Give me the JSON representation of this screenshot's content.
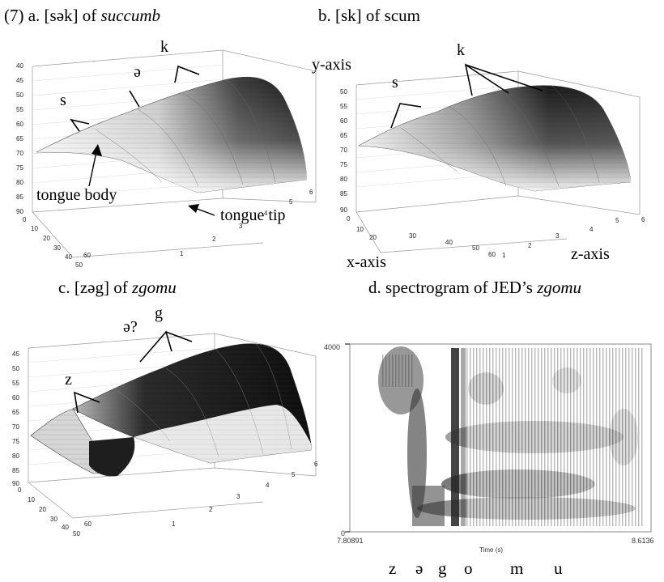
{
  "figure": {
    "panel_a": {
      "prefix": "(7) a. [sək] of ",
      "word": "succumb",
      "labels": {
        "s": "s",
        "schwa": "ə",
        "k": "k",
        "y_axis": "y-axis",
        "tongue_body": "tongue body",
        "tongue_tip": "tongue tip"
      },
      "y_ticks": [
        "40",
        "45",
        "50",
        "55",
        "60",
        "65",
        "70",
        "75",
        "80",
        "85",
        "90"
      ],
      "x_ticks": [
        "0",
        "10",
        "20",
        "30",
        "40",
        "50",
        "60"
      ],
      "z_ticks": [
        "1",
        "2",
        "3",
        "4",
        "5",
        "6"
      ]
    },
    "panel_b": {
      "caption": "b. [sk] of scum",
      "labels": {
        "s": "s",
        "k": "k",
        "x_axis": "x-axis",
        "z_axis": "z-axis"
      },
      "y_ticks": [
        "50",
        "55",
        "60",
        "65",
        "70",
        "75",
        "80",
        "85",
        "90"
      ],
      "x_ticks": [
        "0",
        "10",
        "20",
        "30",
        "40",
        "50",
        "60"
      ],
      "z_ticks": [
        "1",
        "2",
        "3",
        "4",
        "5",
        "6"
      ]
    },
    "panel_c": {
      "prefix": "c. [zəg] of ",
      "word": "zgomu",
      "labels": {
        "z": "z",
        "schwa_q": "ə?",
        "g": "g"
      },
      "y_ticks": [
        "45",
        "50",
        "55",
        "60",
        "65",
        "70",
        "75",
        "80",
        "85",
        "90"
      ],
      "x_ticks": [
        "0",
        "10",
        "20",
        "30",
        "40",
        "50",
        "60"
      ],
      "z_ticks": [
        "1",
        "2",
        "3",
        "4",
        "5",
        "6"
      ]
    },
    "panel_d": {
      "prefix": "d. spectrogram of JED’s ",
      "word": "zgomu",
      "freq_top": "4000",
      "freq_bottom": "0",
      "time_start": "7.80891",
      "time_end": "8.6136",
      "time_label": "Time (s)",
      "segments": [
        "z",
        "ə",
        "g",
        "o",
        "m",
        "u"
      ]
    }
  }
}
